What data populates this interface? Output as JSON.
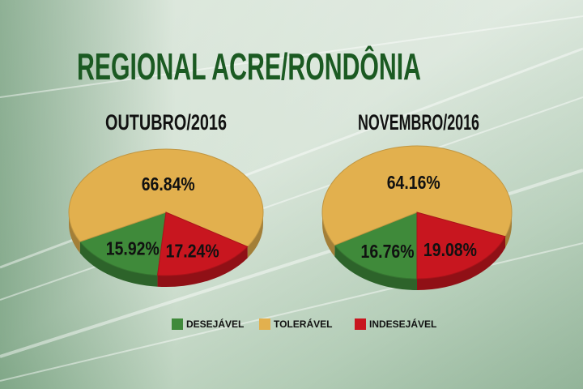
{
  "title": "REGIONAL ACRE/RONDÔNIA",
  "chart_data": [
    {
      "type": "pie",
      "title": "OUTUBRO/2016",
      "categories": [
        "DESEJÁVEL",
        "TOLERÁVEL",
        "INDESEJÁVEL"
      ],
      "values": [
        15.92,
        66.84,
        17.24
      ],
      "value_labels": [
        "15.92%",
        "66.84%",
        "17.24%"
      ],
      "colors": [
        "#3f8a3a",
        "#e2b04e",
        "#c8161f"
      ]
    },
    {
      "type": "pie",
      "title": "NOVEMBRO/2016",
      "categories": [
        "DESEJÁVEL",
        "TOLERÁVEL",
        "INDESEJÁVEL"
      ],
      "values": [
        16.76,
        64.16,
        19.08
      ],
      "value_labels": [
        "16.76%",
        "64.16%",
        "19.08%"
      ],
      "colors": [
        "#3f8a3a",
        "#e2b04e",
        "#c8161f"
      ]
    }
  ]
}
